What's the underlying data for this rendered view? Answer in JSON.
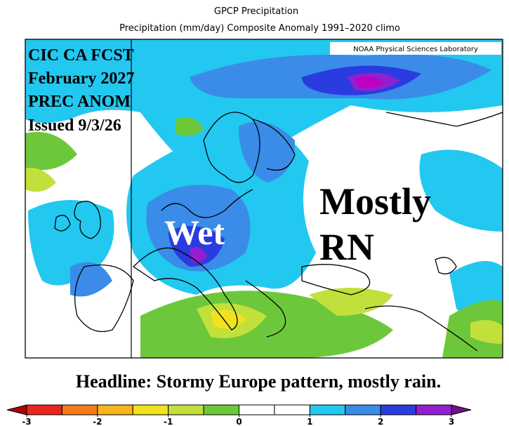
{
  "header": {
    "title": "GPCP Precipitation",
    "subtitle": "Precipitation (mm/day) Composite Anomaly 1991–2020 climo"
  },
  "map": {
    "credit": "NOAA Physical Sciences Laboratory",
    "forecast_label": [
      "CIC CA FCST",
      "February 2027",
      "PREC ANOM",
      "Issued 9/3/26"
    ],
    "annotations": [
      "Wet",
      "Mostly",
      "RN"
    ]
  },
  "headline": "Headline: Stormy Europe pattern, mostly rain.",
  "colorbar": {
    "lim": [
      -3,
      3
    ],
    "ticks": [
      -3,
      -2,
      -1,
      0,
      1,
      2,
      3
    ],
    "colors": [
      "#e8261c",
      "#f57a1a",
      "#f7b51c",
      "#f2e21e",
      "#c2e03c",
      "#6cc83a",
      "#ffffff",
      "#ffffff",
      "#22c8f0",
      "#3a8ce8",
      "#2a3ce0",
      "#9020d0"
    ],
    "under_color": "#b00000",
    "over_color": "#70108a"
  }
}
